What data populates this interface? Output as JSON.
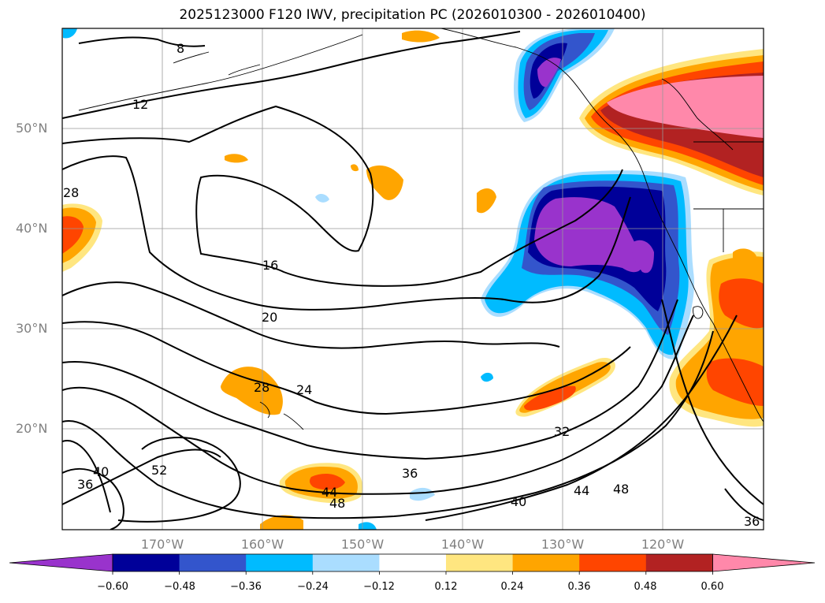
{
  "title": "2025123000 F120 IWV, precipitation PC (2026010300 - 2026010400)",
  "lat_labels": [
    "50°N",
    "40°N",
    "30°N",
    "20°N"
  ],
  "lon_labels": [
    "170°W",
    "160°W",
    "150°W",
    "140°W",
    "130°W",
    "120°W"
  ],
  "colorbar": {
    "ticks": [
      "−0.60",
      "−0.48",
      "−0.36",
      "−0.24",
      "−0.12",
      "0.12",
      "0.24",
      "0.36",
      "0.48",
      "0.60"
    ],
    "colors": [
      "#9933cc",
      "#000099",
      "#3355cc",
      "#00bbff",
      "#aaddff",
      "#ffffff",
      "#ffe680",
      "#ffa500",
      "#ff4500",
      "#b22222",
      "#ff88aa"
    ]
  },
  "contour_labels": [
    "8",
    "12",
    "16",
    "20",
    "24",
    "28",
    "32",
    "36",
    "36",
    "36",
    "40",
    "40",
    "44",
    "44",
    "48",
    "48",
    "52",
    "28"
  ]
}
